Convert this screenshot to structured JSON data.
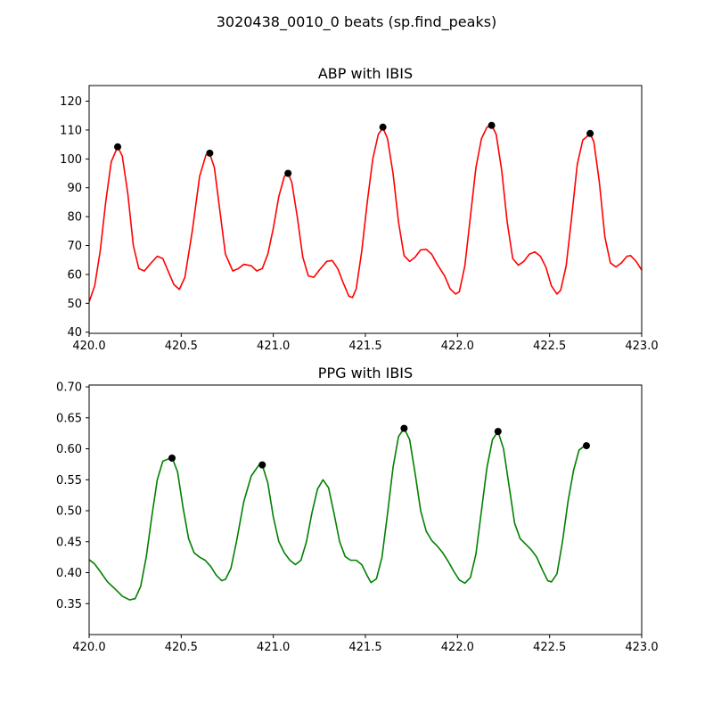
{
  "figure": {
    "suptitle": "3020438_0010_0 beats (sp.find_peaks)"
  },
  "chart_data": [
    {
      "type": "line",
      "title": "ABP with IBIS",
      "xlabel": "",
      "ylabel": "",
      "xlim": [
        420.0,
        423.0
      ],
      "ylim": [
        39.6,
        125.4
      ],
      "xticks": [
        420.0,
        420.5,
        421.0,
        421.5,
        422.0,
        422.5,
        423.0
      ],
      "xtick_labels": [
        "420.0",
        "420.5",
        "421.0",
        "421.5",
        "422.0",
        "422.5",
        "423.0"
      ],
      "yticks": [
        40,
        50,
        60,
        70,
        80,
        90,
        100,
        110,
        120
      ],
      "ytick_labels": [
        "40",
        "50",
        "60",
        "70",
        "80",
        "90",
        "100",
        "110",
        "120"
      ],
      "grid": false,
      "line_color": "#ff0000",
      "marker_color": "#000000",
      "series": [
        {
          "points": [
            [
              420.0,
              50.5
            ],
            [
              420.03,
              56
            ],
            [
              420.06,
              68
            ],
            [
              420.09,
              85
            ],
            [
              420.12,
              99
            ],
            [
              420.155,
              104.2
            ],
            [
              420.18,
              101
            ],
            [
              420.21,
              88
            ],
            [
              420.24,
              70
            ],
            [
              420.27,
              62
            ],
            [
              420.3,
              61.2
            ],
            [
              420.33,
              63.5
            ],
            [
              420.37,
              66.3
            ],
            [
              420.4,
              65.5
            ],
            [
              420.43,
              61
            ],
            [
              420.46,
              56.5
            ],
            [
              420.49,
              54.8
            ],
            [
              420.52,
              59
            ],
            [
              420.56,
              75
            ],
            [
              420.6,
              94
            ],
            [
              420.635,
              101.5
            ],
            [
              420.655,
              101.8
            ],
            [
              420.68,
              97
            ],
            [
              420.71,
              82
            ],
            [
              420.74,
              67
            ],
            [
              420.78,
              61.2
            ],
            [
              420.81,
              62
            ],
            [
              420.84,
              63.5
            ],
            [
              420.88,
              63
            ],
            [
              420.91,
              61.2
            ],
            [
              420.94,
              62
            ],
            [
              420.97,
              67
            ],
            [
              421.0,
              76
            ],
            [
              421.03,
              87
            ],
            [
              421.06,
              94
            ],
            [
              421.08,
              94.9
            ],
            [
              421.1,
              92
            ],
            [
              421.13,
              80
            ],
            [
              421.16,
              66
            ],
            [
              421.19,
              59.5
            ],
            [
              421.22,
              59
            ],
            [
              421.25,
              61.5
            ],
            [
              421.29,
              64.5
            ],
            [
              421.32,
              64.8
            ],
            [
              421.35,
              62
            ],
            [
              421.38,
              57
            ],
            [
              421.41,
              52.5
            ],
            [
              421.43,
              52
            ],
            [
              421.45,
              55
            ],
            [
              421.48,
              68
            ],
            [
              421.51,
              85
            ],
            [
              421.54,
              100
            ],
            [
              421.57,
              108.5
            ],
            [
              421.595,
              110.8
            ],
            [
              421.62,
              107
            ],
            [
              421.65,
              95
            ],
            [
              421.68,
              78
            ],
            [
              421.71,
              66.5
            ],
            [
              421.74,
              64.5
            ],
            [
              421.77,
              66
            ],
            [
              421.8,
              68.5
            ],
            [
              421.83,
              68.7
            ],
            [
              421.86,
              67
            ],
            [
              421.89,
              63.5
            ],
            [
              421.93,
              59.5
            ],
            [
              421.96,
              55
            ],
            [
              421.99,
              53.2
            ],
            [
              422.01,
              54
            ],
            [
              422.04,
              63
            ],
            [
              422.07,
              80
            ],
            [
              422.1,
              97
            ],
            [
              422.13,
              107
            ],
            [
              422.16,
              111
            ],
            [
              422.185,
              111.7
            ],
            [
              422.21,
              108.5
            ],
            [
              422.24,
              96
            ],
            [
              422.27,
              78
            ],
            [
              422.3,
              65.5
            ],
            [
              422.33,
              63.2
            ],
            [
              422.36,
              64.5
            ],
            [
              422.39,
              67
            ],
            [
              422.42,
              67.8
            ],
            [
              422.45,
              66.3
            ],
            [
              422.48,
              62.5
            ],
            [
              422.51,
              56
            ],
            [
              422.54,
              53.2
            ],
            [
              422.56,
              54.5
            ],
            [
              422.59,
              63
            ],
            [
              422.62,
              80
            ],
            [
              422.65,
              98
            ],
            [
              422.68,
              106.5
            ],
            [
              422.72,
              108.7
            ],
            [
              422.74,
              106
            ],
            [
              422.77,
              92
            ],
            [
              422.8,
              73
            ],
            [
              422.83,
              64
            ],
            [
              422.86,
              62.6
            ],
            [
              422.89,
              64
            ],
            [
              422.92,
              66.3
            ],
            [
              422.94,
              66.5
            ],
            [
              422.97,
              64.5
            ],
            [
              423.0,
              61.5
            ]
          ]
        }
      ],
      "peaks": [
        [
          420.155,
          104.2
        ],
        [
          420.655,
          102.0
        ],
        [
          421.08,
          95.0
        ],
        [
          421.595,
          111.0
        ],
        [
          422.185,
          111.6
        ],
        [
          422.72,
          108.8
        ]
      ]
    },
    {
      "type": "line",
      "title": "PPG with IBIS",
      "xlabel": "",
      "ylabel": "",
      "xlim": [
        420.0,
        423.0
      ],
      "ylim": [
        0.3,
        0.703
      ],
      "xticks": [
        420.0,
        420.5,
        421.0,
        421.5,
        422.0,
        422.5,
        423.0
      ],
      "xtick_labels": [
        "420.0",
        "420.5",
        "421.0",
        "421.5",
        "422.0",
        "422.5",
        "423.0"
      ],
      "yticks": [
        0.35,
        0.4,
        0.45,
        0.5,
        0.55,
        0.6,
        0.65,
        0.7
      ],
      "ytick_labels": [
        "0.35",
        "0.40",
        "0.45",
        "0.50",
        "0.55",
        "0.60",
        "0.65",
        "0.70"
      ],
      "grid": false,
      "line_color": "#008000",
      "marker_color": "#000000",
      "series": [
        {
          "points": [
            [
              420.0,
              0.421
            ],
            [
              420.03,
              0.414
            ],
            [
              420.06,
              0.402
            ],
            [
              420.1,
              0.385
            ],
            [
              420.14,
              0.374
            ],
            [
              420.18,
              0.362
            ],
            [
              420.22,
              0.356
            ],
            [
              420.25,
              0.358
            ],
            [
              420.28,
              0.378
            ],
            [
              420.31,
              0.425
            ],
            [
              420.34,
              0.49
            ],
            [
              420.37,
              0.55
            ],
            [
              420.4,
              0.58
            ],
            [
              420.45,
              0.586
            ],
            [
              420.48,
              0.563
            ],
            [
              420.51,
              0.505
            ],
            [
              420.54,
              0.455
            ],
            [
              420.57,
              0.432
            ],
            [
              420.6,
              0.425
            ],
            [
              420.63,
              0.42
            ],
            [
              420.66,
              0.41
            ],
            [
              420.69,
              0.396
            ],
            [
              420.72,
              0.387
            ],
            [
              420.74,
              0.389
            ],
            [
              420.77,
              0.407
            ],
            [
              420.8,
              0.45
            ],
            [
              420.84,
              0.515
            ],
            [
              420.88,
              0.556
            ],
            [
              420.92,
              0.573
            ],
            [
              420.94,
              0.574
            ],
            [
              420.97,
              0.545
            ],
            [
              421.0,
              0.49
            ],
            [
              421.03,
              0.45
            ],
            [
              421.06,
              0.432
            ],
            [
              421.09,
              0.42
            ],
            [
              421.12,
              0.413
            ],
            [
              421.15,
              0.42
            ],
            [
              421.18,
              0.45
            ],
            [
              421.21,
              0.497
            ],
            [
              421.24,
              0.535
            ],
            [
              421.27,
              0.55
            ],
            [
              421.3,
              0.537
            ],
            [
              421.33,
              0.495
            ],
            [
              421.36,
              0.45
            ],
            [
              421.39,
              0.426
            ],
            [
              421.42,
              0.42
            ],
            [
              421.45,
              0.42
            ],
            [
              421.48,
              0.413
            ],
            [
              421.51,
              0.395
            ],
            [
              421.53,
              0.384
            ],
            [
              421.56,
              0.39
            ],
            [
              421.59,
              0.425
            ],
            [
              421.62,
              0.495
            ],
            [
              421.65,
              0.57
            ],
            [
              421.68,
              0.62
            ],
            [
              421.71,
              0.633
            ],
            [
              421.74,
              0.615
            ],
            [
              421.77,
              0.56
            ],
            [
              421.8,
              0.5
            ],
            [
              421.83,
              0.467
            ],
            [
              421.86,
              0.452
            ],
            [
              421.89,
              0.443
            ],
            [
              421.92,
              0.432
            ],
            [
              421.95,
              0.418
            ],
            [
              421.98,
              0.402
            ],
            [
              422.01,
              0.388
            ],
            [
              422.04,
              0.383
            ],
            [
              422.07,
              0.392
            ],
            [
              422.1,
              0.43
            ],
            [
              422.13,
              0.5
            ],
            [
              422.16,
              0.57
            ],
            [
              422.19,
              0.615
            ],
            [
              422.22,
              0.628
            ],
            [
              422.25,
              0.6
            ],
            [
              422.28,
              0.54
            ],
            [
              422.31,
              0.48
            ],
            [
              422.34,
              0.455
            ],
            [
              422.37,
              0.446
            ],
            [
              422.4,
              0.437
            ],
            [
              422.43,
              0.425
            ],
            [
              422.46,
              0.405
            ],
            [
              422.49,
              0.387
            ],
            [
              422.51,
              0.385
            ],
            [
              422.54,
              0.398
            ],
            [
              422.57,
              0.45
            ],
            [
              422.6,
              0.515
            ],
            [
              422.63,
              0.565
            ],
            [
              422.66,
              0.598
            ],
            [
              422.7,
              0.607
            ]
          ]
        }
      ],
      "peaks": [
        [
          420.45,
          0.585
        ],
        [
          420.94,
          0.574
        ],
        [
          421.71,
          0.633
        ],
        [
          422.22,
          0.628
        ],
        [
          422.7,
          0.605
        ]
      ]
    }
  ]
}
